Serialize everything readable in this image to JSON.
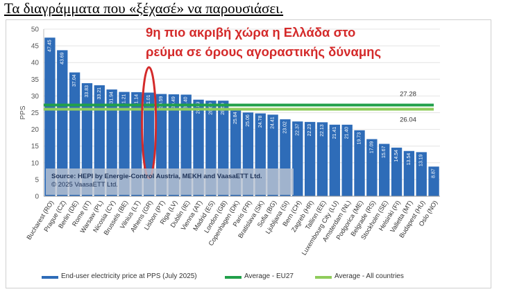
{
  "heading": "Τα διαγράμματα που «ξέχασέ» να παρουσιάσει.",
  "annotation": {
    "line1": "9η πιο ακριβή χώρα η Ελλάδα στο",
    "line2": "ρεύμα σε όρους αγοραστικής δύναμης"
  },
  "source": {
    "line1": "Source: HEPI by Energie-Control Austria, MEKH and VaasaETT Ltd.",
    "line2": "© 2025 VaasaETT Ltd."
  },
  "colors": {
    "bar": "#2e6cb8",
    "eu27": "#21a04a",
    "all": "#8fcc5b",
    "highlight": "#d42a2a"
  },
  "legend": {
    "bars": "End-user electricity price at PPS (July 2025)",
    "eu27": "Average - EU27",
    "all": "Average - All countries"
  },
  "chart_data": {
    "type": "bar",
    "ylabel": "PPS",
    "ylim": [
      0,
      50
    ],
    "yticks": [
      0,
      5,
      10,
      15,
      20,
      25,
      30,
      35,
      40,
      45,
      50
    ],
    "categories": [
      "Bucharest (RO)",
      "Prague (CZ)",
      "Berlin (DE)",
      "Rome (IT)",
      "Warsaw (PL)",
      "Nicosia (CY)",
      "Brussels (BE)",
      "Vilnius (LT)",
      "Athens (GR)",
      "Lisbon (PT)",
      "Riga (LV)",
      "Dublin (IE)",
      "Vienna (AT)",
      "Madrid (ES)",
      "London (GB)",
      "Copenhagen (DK)",
      "Paris (FR)",
      "Bratislava (SK)",
      "Sofia (BG)",
      "Ljubljana (SI)",
      "Bern (CH)",
      "Zagreb (HR)",
      "Tallinn (EE)",
      "Luxembourg City (LU)",
      "Amsterdam (NL)",
      "Podgorica (ME)",
      "Belgrade (RS)",
      "Stockholm (SE)",
      "Helsinki (FI)",
      "Valletta (MT)",
      "Budapest (HU)",
      "Oslo (NO)"
    ],
    "values": [
      47.45,
      43.69,
      37.04,
      33.83,
      33.21,
      31.94,
      31.21,
      31.14,
      31.01,
      30.59,
      30.49,
      30.4,
      28.89,
      28.6,
      28.59,
      25.84,
      25.06,
      24.78,
      24.41,
      23.02,
      22.37,
      22.23,
      22.13,
      21.41,
      21.4,
      19.73,
      17.09,
      15.67,
      14.54,
      13.54,
      13.19,
      8.87
    ],
    "highlight_category": "Athens (GR)",
    "reference_lines": [
      {
        "name": "Average - EU27",
        "value": 27.28,
        "label": "27.28"
      },
      {
        "name": "Average - All countries",
        "value": 26.04,
        "label": "26.04"
      }
    ],
    "grid": true,
    "legend_position": "bottom"
  }
}
